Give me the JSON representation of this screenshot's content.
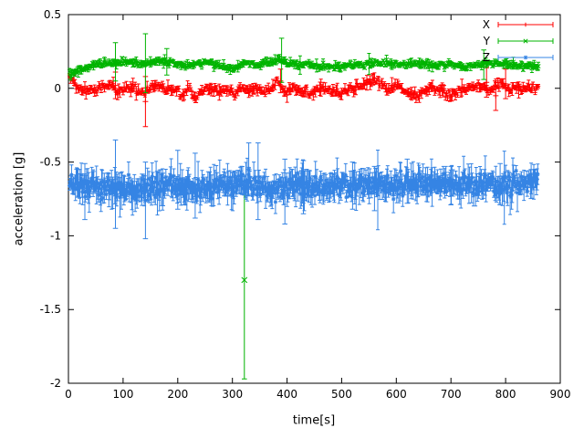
{
  "figure": {
    "background": "#ffffff",
    "axis_color": "#000000"
  },
  "chart_data": {
    "type": "scatter",
    "style": "points-with-yerrorbars",
    "title": "",
    "xlabel": "time[s]",
    "ylabel": "acceleration [g]",
    "xlim": [
      0,
      900
    ],
    "ylim": [
      -2,
      0.5
    ],
    "xticks": [
      0,
      100,
      200,
      300,
      400,
      500,
      600,
      700,
      800,
      900
    ],
    "xtick_labels": [
      "0",
      "100",
      "200",
      "300",
      "400",
      "500",
      "600",
      "700",
      "800",
      "900"
    ],
    "yticks": [
      -2,
      -1.5,
      -1,
      -0.5,
      0,
      0.5
    ],
    "ytick_labels": [
      "-2",
      "-1.5",
      "-1",
      "-0.5",
      "0",
      "0.5"
    ],
    "grid": false,
    "legend": {
      "position": "top-right-inside",
      "entries": [
        "X",
        "Y",
        "Z"
      ]
    },
    "series": [
      {
        "name": "X",
        "color": "#ff0000",
        "marker": "plus",
        "approx_mean": 0.0,
        "t_start": 2,
        "t_end": 860,
        "dt": 2,
        "noise_sd": 0.013,
        "errorbar_half_mean": 0.028,
        "trend": [
          [
            2,
            0.08
          ],
          [
            10,
            0.04
          ],
          [
            20,
            0.0
          ],
          [
            35,
            -0.02
          ],
          [
            50,
            0.0
          ],
          [
            65,
            0.01
          ],
          [
            80,
            0.03
          ],
          [
            90,
            -0.03
          ],
          [
            100,
            0.0
          ],
          [
            115,
            0.01
          ],
          [
            130,
            -0.02
          ],
          [
            140,
            -0.04
          ],
          [
            150,
            0.0
          ],
          [
            165,
            0.02
          ],
          [
            180,
            -0.01
          ],
          [
            195,
            0.0
          ],
          [
            210,
            -0.06
          ],
          [
            220,
            0.02
          ],
          [
            232,
            -0.08
          ],
          [
            245,
            -0.01
          ],
          [
            260,
            0.01
          ],
          [
            275,
            -0.03
          ],
          [
            290,
            0.0
          ],
          [
            305,
            -0.04
          ],
          [
            318,
            0.01
          ],
          [
            330,
            -0.02
          ],
          [
            345,
            0.0
          ],
          [
            360,
            -0.02
          ],
          [
            375,
            0.02
          ],
          [
            385,
            0.05
          ],
          [
            395,
            -0.04
          ],
          [
            405,
            0.0
          ],
          [
            420,
            -0.01
          ],
          [
            440,
            -0.03
          ],
          [
            460,
            0.0
          ],
          [
            480,
            -0.02
          ],
          [
            500,
            -0.03
          ],
          [
            515,
            0.0
          ],
          [
            530,
            0.01
          ],
          [
            550,
            0.04
          ],
          [
            565,
            0.05
          ],
          [
            578,
            0.01
          ],
          [
            590,
            0.0
          ],
          [
            605,
            0.02
          ],
          [
            620,
            -0.03
          ],
          [
            635,
            -0.06
          ],
          [
            650,
            -0.02
          ],
          [
            665,
            0.0
          ],
          [
            680,
            -0.01
          ],
          [
            695,
            -0.04
          ],
          [
            710,
            -0.03
          ],
          [
            725,
            -0.01
          ],
          [
            740,
            0.0
          ],
          [
            755,
            0.02
          ],
          [
            768,
            -0.02
          ],
          [
            780,
            0.02
          ],
          [
            795,
            0.04
          ],
          [
            808,
            -0.02
          ],
          [
            820,
            0.0
          ],
          [
            835,
            -0.01
          ],
          [
            848,
            0.0
          ],
          [
            860,
            0.0
          ]
        ],
        "outliers": [
          {
            "t": 141,
            "v": -0.09,
            "err": 0.17
          },
          {
            "t": 86,
            "v": 0.02,
            "err": 0.09
          },
          {
            "t": 388,
            "v": 0.05,
            "err": 0.08
          },
          {
            "t": 765,
            "v": 0.04,
            "err": 0.1
          },
          {
            "t": 782,
            "v": -0.05,
            "err": 0.1
          },
          {
            "t": 800,
            "v": 0.03,
            "err": 0.1
          }
        ]
      },
      {
        "name": "Y",
        "color": "#00b400",
        "marker": "cross",
        "approx_mean": 0.16,
        "t_start": 2,
        "t_end": 860,
        "dt": 2,
        "noise_sd": 0.01,
        "errorbar_half_mean": 0.02,
        "trend": [
          [
            2,
            0.1
          ],
          [
            15,
            0.11
          ],
          [
            30,
            0.14
          ],
          [
            45,
            0.16
          ],
          [
            60,
            0.17
          ],
          [
            80,
            0.17
          ],
          [
            100,
            0.18
          ],
          [
            120,
            0.17
          ],
          [
            140,
            0.16
          ],
          [
            160,
            0.18
          ],
          [
            180,
            0.18
          ],
          [
            200,
            0.17
          ],
          [
            220,
            0.16
          ],
          [
            240,
            0.17
          ],
          [
            260,
            0.17
          ],
          [
            280,
            0.15
          ],
          [
            300,
            0.13
          ],
          [
            315,
            0.16
          ],
          [
            330,
            0.17
          ],
          [
            350,
            0.17
          ],
          [
            370,
            0.18
          ],
          [
            388,
            0.2
          ],
          [
            400,
            0.17
          ],
          [
            420,
            0.16
          ],
          [
            440,
            0.16
          ],
          [
            460,
            0.15
          ],
          [
            480,
            0.14
          ],
          [
            500,
            0.15
          ],
          [
            520,
            0.16
          ],
          [
            540,
            0.16
          ],
          [
            560,
            0.17
          ],
          [
            580,
            0.17
          ],
          [
            600,
            0.16
          ],
          [
            620,
            0.16
          ],
          [
            640,
            0.17
          ],
          [
            660,
            0.16
          ],
          [
            680,
            0.16
          ],
          [
            700,
            0.16
          ],
          [
            720,
            0.15
          ],
          [
            740,
            0.15
          ],
          [
            760,
            0.17
          ],
          [
            780,
            0.17
          ],
          [
            800,
            0.17
          ],
          [
            815,
            0.16
          ],
          [
            830,
            0.15
          ],
          [
            845,
            0.15
          ],
          [
            860,
            0.15
          ]
        ],
        "outliers": [
          {
            "t": 86,
            "v": 0.18,
            "err": 0.13
          },
          {
            "t": 141,
            "v": 0.17,
            "err": 0.2
          },
          {
            "t": 180,
            "v": 0.18,
            "err": 0.09
          },
          {
            "t": 322,
            "v": -1.3,
            "err": 0.67
          },
          {
            "t": 390,
            "v": 0.19,
            "err": 0.15
          },
          {
            "t": 760,
            "v": 0.16,
            "err": 0.1
          }
        ]
      },
      {
        "name": "Z",
        "color": "#3584e4",
        "marker": "star",
        "approx_mean": -0.66,
        "t_start": 2,
        "t_end": 860,
        "dt": 1.2,
        "noise_sd": 0.035,
        "errorbar_half_mean": 0.075,
        "trend": [
          [
            2,
            -0.65
          ],
          [
            20,
            -0.67
          ],
          [
            40,
            -0.68
          ],
          [
            60,
            -0.67
          ],
          [
            80,
            -0.66
          ],
          [
            100,
            -0.67
          ],
          [
            120,
            -0.68
          ],
          [
            140,
            -0.68
          ],
          [
            160,
            -0.67
          ],
          [
            180,
            -0.66
          ],
          [
            200,
            -0.67
          ],
          [
            220,
            -0.67
          ],
          [
            240,
            -0.66
          ],
          [
            260,
            -0.67
          ],
          [
            280,
            -0.66
          ],
          [
            300,
            -0.66
          ],
          [
            320,
            -0.64
          ],
          [
            340,
            -0.65
          ],
          [
            360,
            -0.67
          ],
          [
            380,
            -0.68
          ],
          [
            400,
            -0.67
          ],
          [
            420,
            -0.66
          ],
          [
            440,
            -0.66
          ],
          [
            460,
            -0.67
          ],
          [
            480,
            -0.67
          ],
          [
            500,
            -0.66
          ],
          [
            520,
            -0.66
          ],
          [
            540,
            -0.66
          ],
          [
            560,
            -0.67
          ],
          [
            580,
            -0.66
          ],
          [
            600,
            -0.66
          ],
          [
            620,
            -0.64
          ],
          [
            640,
            -0.65
          ],
          [
            660,
            -0.66
          ],
          [
            680,
            -0.65
          ],
          [
            700,
            -0.65
          ],
          [
            720,
            -0.65
          ],
          [
            740,
            -0.66
          ],
          [
            760,
            -0.65
          ],
          [
            780,
            -0.65
          ],
          [
            800,
            -0.66
          ],
          [
            820,
            -0.65
          ],
          [
            840,
            -0.65
          ],
          [
            860,
            -0.65
          ]
        ],
        "outliers": [
          {
            "t": 30,
            "v": -0.7,
            "err": 0.19
          },
          {
            "t": 86,
            "v": -0.65,
            "err": 0.3
          },
          {
            "t": 141,
            "v": -0.76,
            "err": 0.26
          },
          {
            "t": 200,
            "v": -0.62,
            "err": 0.2
          },
          {
            "t": 232,
            "v": -0.66,
            "err": 0.22
          },
          {
            "t": 330,
            "v": -0.55,
            "err": 0.18
          },
          {
            "t": 347,
            "v": -0.63,
            "err": 0.26
          },
          {
            "t": 396,
            "v": -0.7,
            "err": 0.22
          },
          {
            "t": 430,
            "v": -0.67,
            "err": 0.18
          },
          {
            "t": 520,
            "v": -0.66,
            "err": 0.16
          },
          {
            "t": 560,
            "v": -0.68,
            "err": 0.15
          },
          {
            "t": 620,
            "v": -0.63,
            "err": 0.15
          },
          {
            "t": 700,
            "v": -0.66,
            "err": 0.13
          },
          {
            "t": 790,
            "v": -0.65,
            "err": 0.14
          }
        ]
      }
    ]
  }
}
